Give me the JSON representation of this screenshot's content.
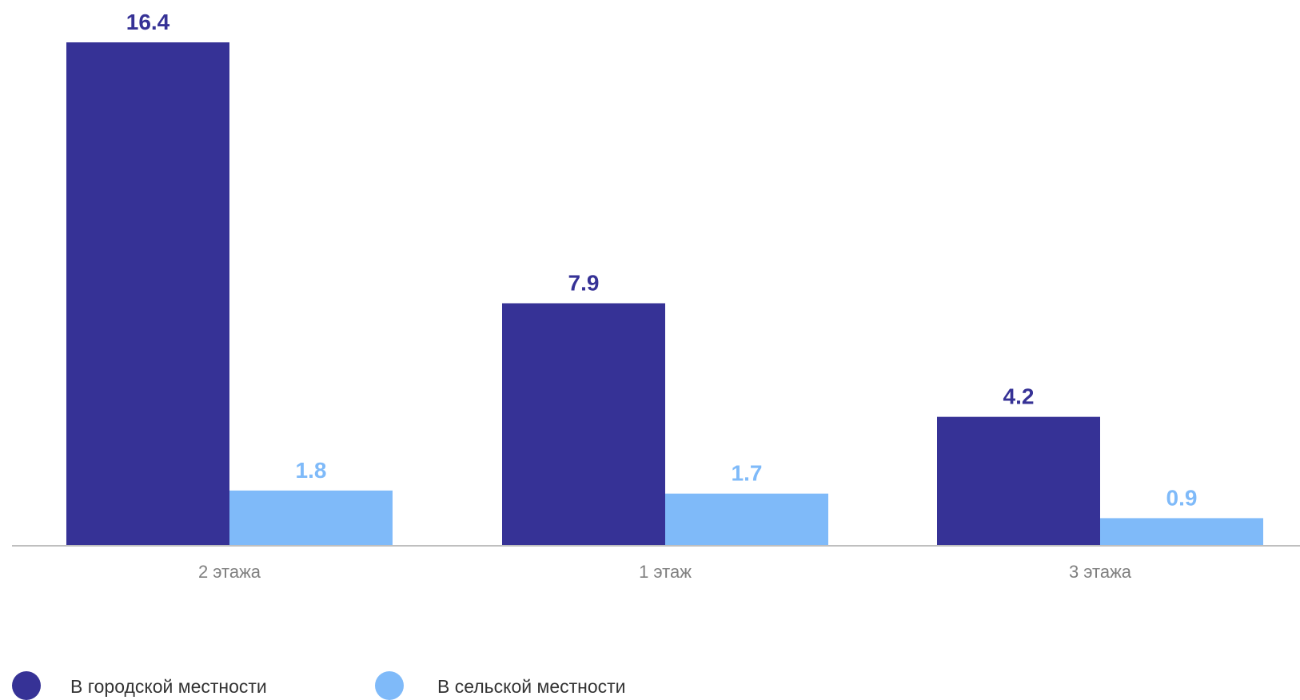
{
  "chart_data": {
    "type": "bar",
    "categories": [
      "2 этажа",
      "1 этаж",
      "3 этажа"
    ],
    "series": [
      {
        "name": "В городской местности",
        "values": [
          16.4,
          7.9,
          4.2
        ],
        "color": "#363296"
      },
      {
        "name": "В сельской местности",
        "values": [
          1.8,
          1.7,
          0.9
        ],
        "color": "#7fbaf9"
      }
    ],
    "title": "",
    "xlabel": "",
    "ylabel": "",
    "ylim": [
      0,
      16.4
    ],
    "grid": false,
    "legend_position": "bottom-left"
  }
}
